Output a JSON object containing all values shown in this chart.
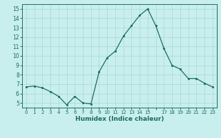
{
  "x": [
    0,
    1,
    2,
    3,
    4,
    5,
    6,
    7,
    8,
    9,
    10,
    11,
    12,
    13,
    14,
    15,
    16,
    17,
    18,
    19,
    20,
    21,
    22,
    23
  ],
  "y": [
    6.7,
    6.8,
    6.6,
    6.2,
    5.7,
    4.8,
    5.7,
    5.0,
    4.9,
    8.3,
    9.8,
    10.5,
    12.1,
    13.2,
    14.3,
    15.0,
    13.2,
    10.8,
    9.0,
    8.6,
    7.6,
    7.6,
    7.1,
    6.7
  ],
  "xlabel": "Humidex (Indice chaleur)",
  "ylim": [
    4.5,
    15.5
  ],
  "xlim": [
    -0.5,
    23.5
  ],
  "yticks": [
    5,
    6,
    7,
    8,
    9,
    10,
    11,
    12,
    13,
    14,
    15
  ],
  "line_color": "#1a6b5a",
  "marker_color": "#1a6b5a",
  "bg_color": "#c8eeee",
  "grid_color": "#a8d8d8",
  "axis_color": "#1a6b5a",
  "tick_label_color": "#1a6b5a",
  "xlabel_color": "#1a6b5a"
}
